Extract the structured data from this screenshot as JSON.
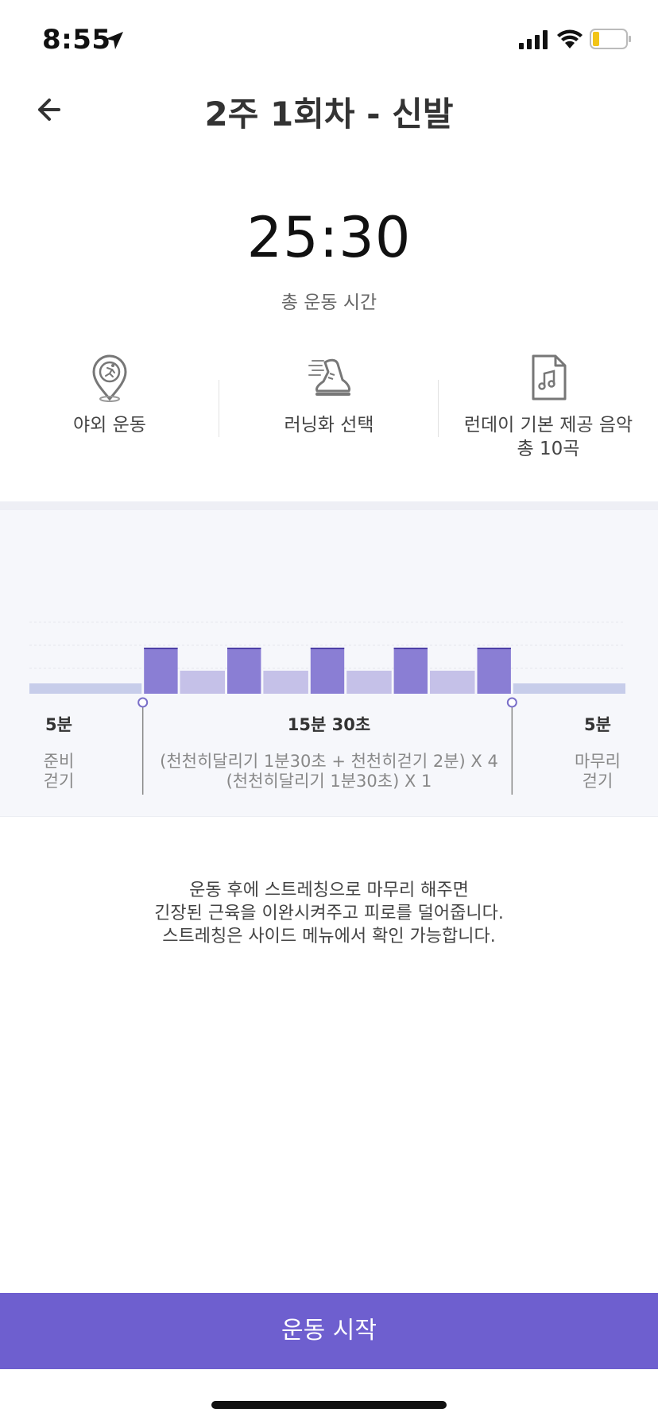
{
  "status_bar": {
    "time": "8:55"
  },
  "nav": {
    "title": "2주 1회차 - 신발"
  },
  "summary": {
    "total_time": "25:30",
    "total_label": "총 운동 시간"
  },
  "options": [
    {
      "icon": "location-runner-icon",
      "label": "야외 운동"
    },
    {
      "icon": "running-shoe-icon",
      "label": "러닝화 선택"
    },
    {
      "icon": "music-file-icon",
      "label_line1": "런데이 기본 제공 음악",
      "label_line2": "총 10곡"
    }
  ],
  "chart_data": {
    "type": "bar",
    "description_units": "minutes per segment (bar widths); heights show intensity level",
    "segments": [
      {
        "activity": "준비 걷기",
        "minutes": 5,
        "level": 1
      },
      {
        "activity": "천천히달리기",
        "minutes": 1.5,
        "level": 3
      },
      {
        "activity": "천천히걷기",
        "minutes": 2,
        "level": 2
      },
      {
        "activity": "천천히달리기",
        "minutes": 1.5,
        "level": 3
      },
      {
        "activity": "천천히걷기",
        "minutes": 2,
        "level": 2
      },
      {
        "activity": "천천히달리기",
        "minutes": 1.5,
        "level": 3
      },
      {
        "activity": "천천히걷기",
        "minutes": 2,
        "level": 2
      },
      {
        "activity": "천천히달리기",
        "minutes": 1.5,
        "level": 3
      },
      {
        "activity": "천천히걷기",
        "minutes": 2,
        "level": 2
      },
      {
        "activity": "천천히달리기",
        "minutes": 1.5,
        "level": 3
      },
      {
        "activity": "마무리 걷기",
        "minutes": 5,
        "level": 1
      }
    ],
    "colors": {
      "run": "#8a7ed4",
      "walk": "#c5c1e8",
      "warm": "#c7cdea",
      "marker": "#7a6fc9"
    }
  },
  "schedule": {
    "warmup": {
      "duration": "5분",
      "label_line1": "준비",
      "label_line2": "걷기"
    },
    "main": {
      "duration": "15분 30초",
      "line1": "(천천히달리기 1분30초 + 천천히걷기 2분) X 4",
      "line2": "(천천히달리기 1분30초) X 1"
    },
    "cooldown": {
      "duration": "5분",
      "label_line1": "마무리",
      "label_line2": "걷기"
    }
  },
  "tip": {
    "line1": "운동 후에 스트레칭으로 마무리 해주면",
    "line2": "긴장된 근육을 이완시켜주고 피로를 덜어줍니다.",
    "line3": "스트레칭은 사이드 메뉴에서 확인 가능합니다."
  },
  "start_button": {
    "label": "운동 시작"
  }
}
